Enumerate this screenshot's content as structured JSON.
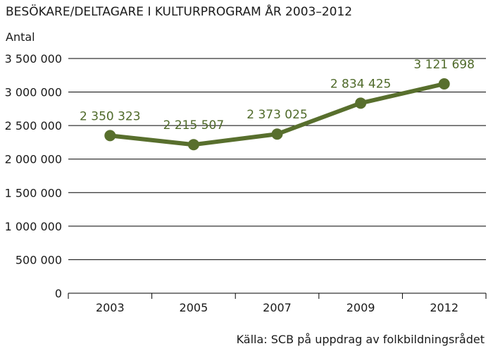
{
  "chart_data": {
    "type": "line",
    "title": "BESÖKARE/DELTAGARE I KULTURPROGRAM ÅR 2003–2012",
    "ylabel": "Antal",
    "xlabel": "",
    "categories": [
      "2003",
      "2005",
      "2007",
      "2009",
      "2012"
    ],
    "series": [
      {
        "values": [
          2350323,
          2215507,
          2373025,
          2834425,
          3121698
        ]
      }
    ],
    "data_labels": [
      "2 350 323",
      "2 215 507",
      "2 373 025",
      "2 834 425",
      "3 121 698"
    ],
    "ylim": [
      0,
      3500000
    ],
    "yticks": [
      0,
      500000,
      1000000,
      1500000,
      2000000,
      2500000,
      3000000,
      3500000
    ],
    "ytick_labels": [
      "0",
      "500 000",
      "1 000 000",
      "1 500 000",
      "2 000 000",
      "2 500 000",
      "3 000 000",
      "3 500 000"
    ],
    "grid": true,
    "source": "Källa: SCB på uppdrag av folkbildningsrådet",
    "colors": {
      "series": "#586f2d",
      "label": "#4f6a2a",
      "grid": "#000000"
    }
  }
}
